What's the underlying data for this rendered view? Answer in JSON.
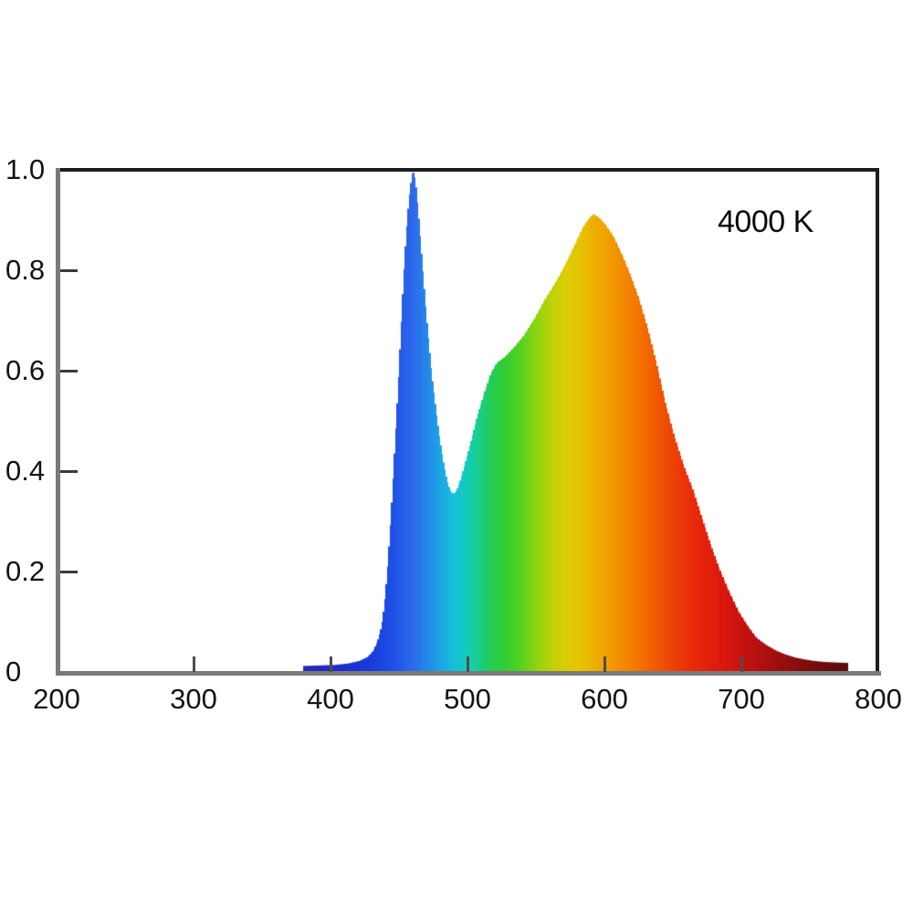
{
  "chart_data": {
    "type": "area",
    "title": "",
    "annotation": "4000 K",
    "xlabel": "",
    "ylabel": "",
    "grid": false,
    "legend": false,
    "x_axis": {
      "min": 200,
      "max": 800,
      "ticks": [
        200,
        300,
        400,
        500,
        600,
        700,
        800
      ],
      "tick_labels": [
        "200",
        "300",
        "400",
        "500",
        "600",
        "700",
        "800"
      ]
    },
    "y_axis": {
      "min": 0,
      "max": 1.0,
      "ticks": [
        0,
        0.2,
        0.4,
        0.6,
        0.8,
        1.0
      ],
      "tick_labels": [
        "0",
        "0.2",
        "0.4",
        "0.6",
        "0.8",
        "1.0"
      ]
    },
    "series": [
      {
        "name": "spectral-power-distribution-4000K",
        "fill_style": "visible-spectrum-per-wavelength",
        "points": [
          [
            380,
            0.012
          ],
          [
            392,
            0.013
          ],
          [
            403,
            0.014
          ],
          [
            413,
            0.017
          ],
          [
            421,
            0.022
          ],
          [
            427,
            0.03
          ],
          [
            431,
            0.042
          ],
          [
            434,
            0.06
          ],
          [
            437,
            0.09
          ],
          [
            439,
            0.13
          ],
          [
            441,
            0.19
          ],
          [
            443,
            0.27
          ],
          [
            445,
            0.36
          ],
          [
            447,
            0.46
          ],
          [
            449,
            0.56
          ],
          [
            451,
            0.67
          ],
          [
            453,
            0.78
          ],
          [
            455,
            0.87
          ],
          [
            457,
            0.94
          ],
          [
            459,
            0.985
          ],
          [
            460,
            1.0
          ],
          [
            462,
            0.98
          ],
          [
            464,
            0.92
          ],
          [
            466,
            0.85
          ],
          [
            468,
            0.78
          ],
          [
            470,
            0.71
          ],
          [
            472,
            0.65
          ],
          [
            474,
            0.59
          ],
          [
            476,
            0.545
          ],
          [
            478,
            0.5
          ],
          [
            480,
            0.46
          ],
          [
            482,
            0.425
          ],
          [
            484,
            0.395
          ],
          [
            486,
            0.372
          ],
          [
            488,
            0.358
          ],
          [
            490,
            0.355
          ],
          [
            492,
            0.362
          ],
          [
            495,
            0.385
          ],
          [
            498,
            0.415
          ],
          [
            502,
            0.455
          ],
          [
            507,
            0.51
          ],
          [
            512,
            0.555
          ],
          [
            517,
            0.595
          ],
          [
            521,
            0.615
          ],
          [
            527,
            0.627
          ],
          [
            534,
            0.647
          ],
          [
            541,
            0.67
          ],
          [
            549,
            0.705
          ],
          [
            556,
            0.74
          ],
          [
            564,
            0.775
          ],
          [
            571,
            0.81
          ],
          [
            578,
            0.85
          ],
          [
            584,
            0.885
          ],
          [
            589,
            0.905
          ],
          [
            592,
            0.912
          ],
          [
            596,
            0.905
          ],
          [
            601,
            0.89
          ],
          [
            607,
            0.865
          ],
          [
            613,
            0.83
          ],
          [
            619,
            0.79
          ],
          [
            625,
            0.745
          ],
          [
            631,
            0.69
          ],
          [
            638,
            0.615
          ],
          [
            645,
            0.53
          ],
          [
            651,
            0.47
          ],
          [
            658,
            0.41
          ],
          [
            665,
            0.36
          ],
          [
            672,
            0.3
          ],
          [
            678,
            0.25
          ],
          [
            684,
            0.205
          ],
          [
            691,
            0.16
          ],
          [
            698,
            0.12
          ],
          [
            705,
            0.09
          ],
          [
            711,
            0.068
          ],
          [
            718,
            0.054
          ],
          [
            725,
            0.043
          ],
          [
            732,
            0.035
          ],
          [
            739,
            0.029
          ],
          [
            746,
            0.025
          ],
          [
            753,
            0.022
          ],
          [
            760,
            0.02
          ],
          [
            768,
            0.019
          ],
          [
            778,
            0.018
          ]
        ]
      }
    ],
    "spectrum_color_stops": [
      [
        380,
        "#2828b4"
      ],
      [
        410,
        "#1e2dcd"
      ],
      [
        430,
        "#193cdc"
      ],
      [
        445,
        "#1e50e6"
      ],
      [
        460,
        "#2d69eb"
      ],
      [
        470,
        "#2387e8"
      ],
      [
        480,
        "#1ca5e4"
      ],
      [
        490,
        "#16c0da"
      ],
      [
        500,
        "#12cdb9"
      ],
      [
        508,
        "#19cd8c"
      ],
      [
        516,
        "#23cb5a"
      ],
      [
        525,
        "#2dcd37"
      ],
      [
        535,
        "#46d023"
      ],
      [
        548,
        "#82d412"
      ],
      [
        560,
        "#b9d208"
      ],
      [
        572,
        "#dccd04"
      ],
      [
        584,
        "#e8c002"
      ],
      [
        595,
        "#eeac00"
      ],
      [
        608,
        "#f29400"
      ],
      [
        620,
        "#f47e00"
      ],
      [
        632,
        "#f26602"
      ],
      [
        645,
        "#ee4b05"
      ],
      [
        658,
        "#ea3408"
      ],
      [
        672,
        "#e5220b"
      ],
      [
        686,
        "#dc180d"
      ],
      [
        700,
        "#c8130f"
      ],
      [
        715,
        "#af1010"
      ],
      [
        730,
        "#960e0e"
      ],
      [
        748,
        "#7d0d0d"
      ],
      [
        765,
        "#670c0c"
      ],
      [
        780,
        "#580b0b"
      ]
    ],
    "colors": {
      "plot_border_dark": "#1c1c1c",
      "axis_gray": "#7a7a7a",
      "label_text": "#141414",
      "background": "#ffffff"
    }
  }
}
